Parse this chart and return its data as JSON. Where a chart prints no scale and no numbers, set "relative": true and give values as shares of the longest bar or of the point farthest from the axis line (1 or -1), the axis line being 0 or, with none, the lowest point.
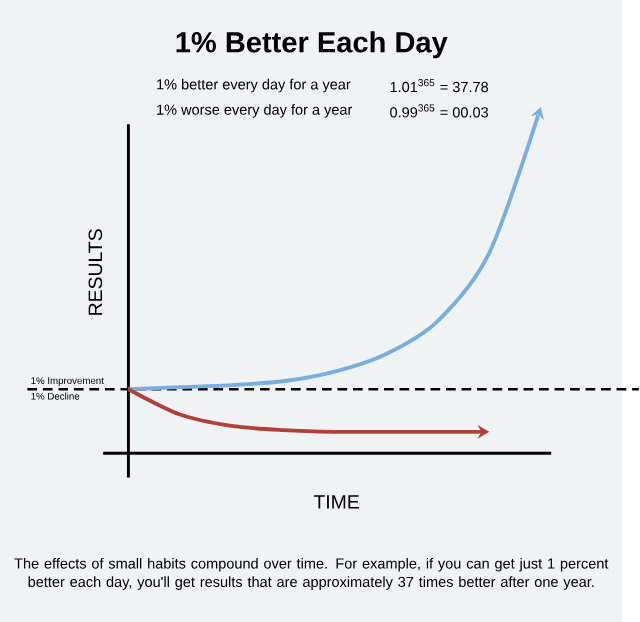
{
  "chart_data": {
    "type": "line",
    "title": "1% Better Each Day",
    "xlabel": "TIME",
    "ylabel": "RESULTS",
    "relative": true,
    "categories": [
      null,
      null,
      null,
      null,
      null,
      null,
      null,
      null,
      null
    ],
    "series": [
      {
        "color": "#7aaee0",
        "values": [
          0.185,
          0.191,
          0.197,
          0.208,
          0.236,
          0.287,
          0.382,
          0.579,
          1
        ]
      },
      {
        "color": "#b0403a",
        "values": [
          0.185,
          0.112,
          0.079,
          0.067,
          0.062,
          0.062,
          0.062,
          0.062,
          null
        ]
      }
    ],
    "ref_lines": [
      {
        "axis": "y",
        "value": 0.185,
        "label": "1% Improvement",
        "color": "#000000",
        "line_style": "dashed"
      }
    ],
    "annotations": [
      "1% better every day for a year",
      "1.01$^{365}$ = 37.78",
      "1% worse every day for a year",
      "0.99$^{365}$ = 00.03",
      {
        "text": "1% Decline",
        "y": 0.185
      },
      "The effects of small habits compound over time. For example, if you can get just 1 percent better each day, you'll get results that are approximately 37 times better after one year."
    ]
  }
}
